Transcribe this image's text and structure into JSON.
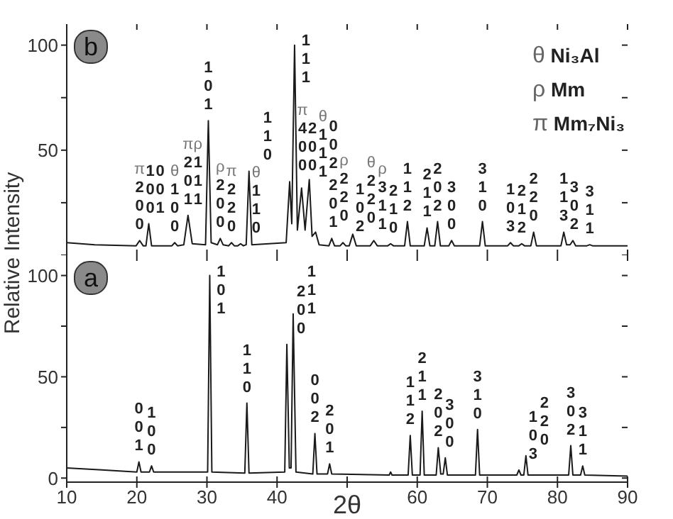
{
  "chart_data": [
    {
      "type": "line",
      "ylabel": "Relative Intensity",
      "marker": "none",
      "tick_labels": "y",
      "xlim": [
        10,
        90
      ],
      "xticks": [
        10,
        20,
        30,
        40,
        50,
        60,
        70,
        80,
        90
      ],
      "ylim": [
        0,
        110
      ],
      "yticks": [
        {
          "value": 0,
          "label": null
        },
        {
          "value": 25,
          "label": null
        },
        50,
        {
          "value": 75,
          "label": null
        },
        100
      ],
      "x": [
        10,
        14,
        19.9,
        20.4,
        20.9,
        21.3,
        21.7,
        22.1,
        25.0,
        25.4,
        25.8,
        26.7,
        27.3,
        27.9,
        29.8,
        30.2,
        30.6,
        31.5,
        31.9,
        32.3,
        33.1,
        33.5,
        33.9,
        34.4,
        34.8,
        35.2,
        35.6,
        36.0,
        36.4,
        41.3,
        41.8,
        42.1,
        42.5,
        42.9,
        43.5,
        44.0,
        44.6,
        45.0,
        45.5,
        46.0,
        47.4,
        47.8,
        48.2,
        49.0,
        49.4,
        49.8,
        50.3,
        50.8,
        51.3,
        53.3,
        53.8,
        54.3,
        55.8,
        56.2,
        56.6,
        58.2,
        58.6,
        59.0,
        61.0,
        61.4,
        61.8,
        62.5,
        62.9,
        63.3,
        64.5,
        64.9,
        65.3,
        68.9,
        69.3,
        69.7,
        72.9,
        73.3,
        73.7,
        74.5,
        74.9,
        75.3,
        76.2,
        76.6,
        77.0,
        80.5,
        80.9,
        81.3,
        81.8,
        82.2,
        82.6,
        84.2,
        84.6,
        85.0,
        90
      ],
      "series": [
        {
          "color": "#1a1a1a",
          "values": [
            6,
            5,
            4.5,
            7,
            4.5,
            4.5,
            15,
            4.5,
            4.5,
            6,
            4.5,
            5,
            19,
            5.5,
            5,
            64,
            6,
            5,
            8,
            5,
            4.5,
            6,
            4.5,
            4.5,
            5.5,
            4.5,
            5,
            40,
            5,
            6,
            35,
            15,
            100,
            12,
            32,
            12,
            36,
            9,
            11,
            5,
            4.5,
            8,
            4.5,
            4.5,
            6,
            4.5,
            4.5,
            10,
            4.5,
            4.5,
            7,
            4.5,
            4.5,
            5.5,
            4.5,
            4.5,
            16,
            4.5,
            4.5,
            13,
            4.5,
            4.5,
            16,
            4.5,
            4.5,
            7,
            4.5,
            4.5,
            16,
            4.5,
            4.5,
            6,
            4.5,
            4.5,
            5.5,
            4.5,
            4.5,
            11,
            4.5,
            4.5,
            11,
            5,
            5,
            7,
            4.5,
            4.5,
            5,
            4.5,
            4.5
          ]
        }
      ],
      "annotations": [
        "b",
        "θ Ni₃Al",
        "ρ Mm",
        "π Mm₇Ni₃",
        {
          "text": "π200",
          "x": 20.4,
          "y": 7
        },
        {
          "text": "100",
          "x": 21.7,
          "y": 15
        },
        {
          "text": "001",
          "x": 21.7,
          "y": 15
        },
        {
          "text": "θ100",
          "x": 25.4,
          "y": 6
        },
        {
          "text": "π201",
          "x": 27.3,
          "y": 19
        },
        {
          "text": "ρ111",
          "x": 27.3,
          "y": 19
        },
        {
          "text": "101",
          "x": 30.2,
          "y": 64
        },
        {
          "text": "ρ200",
          "x": 31.9,
          "y": 8
        },
        {
          "text": "π220",
          "x": 33.5,
          "y": 6
        },
        {
          "text": "θ110",
          "x": 34.8,
          "y": 5.5
        },
        {
          "text": "110",
          "x": 36.0,
          "y": 40
        },
        {
          "text": "π400",
          "x": 41.8,
          "y": 35
        },
        {
          "text": "200",
          "x": 41.8,
          "y": 35
        },
        {
          "text": "111",
          "x": 42.5,
          "y": 100
        },
        {
          "text": "θ111",
          "x": 43.5,
          "y": 32
        },
        {
          "text": "002",
          "x": 44.6,
          "y": 36
        },
        {
          "text": "ρ220",
          "x": 45.5,
          "y": 11
        },
        {
          "text": "201",
          "x": 47.8,
          "y": 8
        },
        {
          "text": "102",
          "x": 49.4,
          "y": 6
        },
        {
          "text": "θ220",
          "x": 50.8,
          "y": 10
        },
        {
          "text": "ρ311",
          "x": 53.8,
          "y": 7
        },
        {
          "text": "210",
          "x": 56.2,
          "y": 5.5
        },
        {
          "text": "112",
          "x": 58.6,
          "y": 16
        },
        {
          "text": "211",
          "x": 61.4,
          "y": 13
        },
        {
          "text": "202",
          "x": 62.9,
          "y": 16
        },
        {
          "text": "300",
          "x": 64.9,
          "y": 7
        },
        {
          "text": "310",
          "x": 69.3,
          "y": 16
        },
        {
          "text": "103",
          "x": 73.3,
          "y": 6
        },
        {
          "text": "212",
          "x": 74.9,
          "y": 5.5
        },
        {
          "text": "220",
          "x": 76.6,
          "y": 11
        },
        {
          "text": "113",
          "x": 80.9,
          "y": 11
        },
        {
          "text": "302",
          "x": 82.2,
          "y": 7
        },
        {
          "text": "311",
          "x": 84.6,
          "y": 5
        }
      ]
    },
    {
      "type": "line",
      "xlabel": "2θ",
      "marker": "none",
      "xlim": [
        10,
        90
      ],
      "xticks": [
        10,
        20,
        30,
        40,
        {
          "value": 50,
          "label": null
        },
        60,
        70,
        80,
        90
      ],
      "ylim": [
        -2,
        110
      ],
      "yticks": [
        0,
        {
          "value": 25,
          "label": null
        },
        50,
        {
          "value": 75,
          "label": null
        },
        100
      ],
      "x": [
        10,
        15,
        20.0,
        20.3,
        20.6,
        21.8,
        22.1,
        22.4,
        30.1,
        30.4,
        30.7,
        35.4,
        35.7,
        36.0,
        41.1,
        41.4,
        41.75,
        42.0,
        42.3,
        42.7,
        45.1,
        45.4,
        45.7,
        47.2,
        47.5,
        47.8,
        56.0,
        56.2,
        56.4,
        58.7,
        59.0,
        59.3,
        60.4,
        60.7,
        61.0,
        62.7,
        63.0,
        63.35,
        63.7,
        64.0,
        64.3,
        68.3,
        68.6,
        68.9,
        74.2,
        74.5,
        74.8,
        75.2,
        75.5,
        75.8,
        81.6,
        81.9,
        82.2,
        83.3,
        83.6,
        83.9,
        90
      ],
      "series": [
        {
          "color": "#1a1a1a",
          "values": [
            5,
            4,
            3,
            8,
            3,
            3,
            6,
            3,
            3,
            100,
            3,
            2.5,
            37,
            2.5,
            3,
            66,
            5,
            5,
            81,
            3,
            2,
            22,
            2,
            2,
            7,
            2,
            1.5,
            3,
            1.5,
            1.5,
            21,
            1.5,
            1.5,
            33,
            1.5,
            1.5,
            15,
            2,
            2,
            10,
            1.5,
            1.5,
            24,
            1.5,
            1.5,
            4,
            1.5,
            1.5,
            11,
            1.5,
            1.5,
            16,
            1.5,
            1.5,
            6,
            1.5,
            1
          ]
        }
      ],
      "annotations": [
        "a",
        {
          "text": "001",
          "x": 20.3,
          "y": 8
        },
        {
          "text": "100",
          "x": 22.1,
          "y": 6
        },
        {
          "text": "101",
          "x": 30.4,
          "y": 100
        },
        {
          "text": "110",
          "x": 35.7,
          "y": 37
        },
        {
          "text": "200",
          "x": 41.4,
          "y": 66
        },
        {
          "text": "111",
          "x": 42.3,
          "y": 81
        },
        {
          "text": "002",
          "x": 45.4,
          "y": 22
        },
        {
          "text": "201",
          "x": 47.5,
          "y": 7
        },
        {
          "text": "112",
          "x": 59.0,
          "y": 21
        },
        {
          "text": "211",
          "x": 60.7,
          "y": 33
        },
        {
          "text": "202",
          "x": 63.0,
          "y": 15
        },
        {
          "text": "300",
          "x": 64.0,
          "y": 10
        },
        {
          "text": "310",
          "x": 68.6,
          "y": 24
        },
        {
          "text": "103",
          "x": 74.5,
          "y": 4
        },
        {
          "text": "220",
          "x": 75.5,
          "y": 11
        },
        {
          "text": "302",
          "x": 81.9,
          "y": 16
        },
        {
          "text": "311",
          "x": 83.6,
          "y": 6
        }
      ]
    }
  ]
}
